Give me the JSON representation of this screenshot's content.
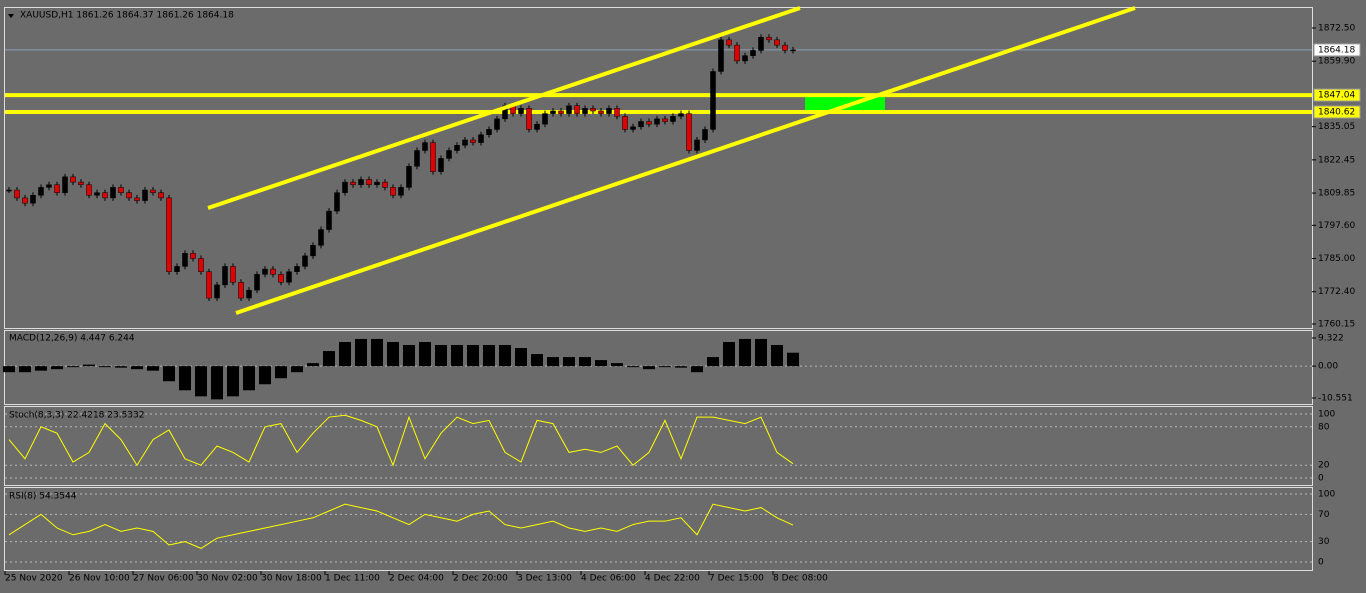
{
  "symbol_label": "XAUUSD,H1  1861.26 1864.37 1861.26 1864.18",
  "price_panel": {
    "ylim": [
      1758.63,
      1880.09
    ],
    "yticks": [
      {
        "value": 1872.5,
        "label": "1872.50"
      },
      {
        "value": 1859.9,
        "label": "1859.90"
      },
      1835.05,
      1822.45,
      1809.85,
      {
        "value": 1797.6,
        "label": "1797.60"
      },
      {
        "value": 1785,
        "label": "1785.00"
      },
      {
        "value": 1772.4,
        "label": "1772.40"
      },
      1760.15
    ],
    "current_price": 1864.18,
    "levels": [
      1847.04,
      1840.62
    ],
    "closes": [
      1811,
      1808,
      1806,
      1809,
      1812,
      1813,
      1810,
      1816,
      1814,
      1813,
      1809,
      1810,
      1808,
      1812,
      1810,
      1808,
      1807,
      1811,
      1810,
      1808,
      1780,
      1782,
      1787,
      1785,
      1780,
      1770,
      1775,
      1782,
      1776,
      1770,
      1773,
      1779,
      1781,
      1779,
      1776,
      1780,
      1782,
      1786,
      1790,
      1796,
      1803,
      1810,
      1814,
      1813,
      1815,
      1813,
      1814,
      1812,
      1809,
      1812,
      1820,
      1826,
      1829,
      1818,
      1823,
      1826,
      1828,
      1830,
      1829,
      1832,
      1834,
      1838,
      1843,
      1840,
      1842,
      1834,
      1836,
      1840,
      1841,
      1840,
      1843,
      1840,
      1842,
      1841,
      1840,
      1842,
      1839,
      1834,
      1835,
      1837,
      1836,
      1838,
      1837,
      1839,
      1840,
      1826,
      1830,
      1834,
      1856,
      1868,
      1866,
      1860,
      1862,
      1864,
      1869,
      1868,
      1866,
      1864,
      1864.18
    ]
  },
  "macd_panel": {
    "label": "MACD(12,26,9) 4.447 6.244",
    "ylim": [
      -12.54,
      11.97
    ],
    "yticks": [
      9.322,
      {
        "value": 0,
        "label": "0.00"
      },
      -10.551
    ],
    "values": [
      -2,
      -2,
      -1.5,
      -1,
      0,
      0.5,
      0,
      -0.5,
      -1,
      -1.5,
      -5,
      -8,
      -10,
      -11,
      -10,
      -8,
      -6,
      -4,
      -2,
      1,
      5,
      8,
      9,
      9,
      8,
      7,
      8,
      7,
      7,
      7,
      7,
      7,
      6,
      4,
      3,
      3,
      3,
      2,
      1,
      0,
      -1,
      0,
      -0.5,
      -2,
      3,
      8,
      9,
      9,
      7,
      4.447
    ]
  },
  "stoch_panel": {
    "label": "Stoch(8,3,3) 22.4218 23.5332",
    "ylim": [
      -10.9,
      110.9
    ],
    "yticks": [
      100,
      80,
      20,
      0
    ],
    "values": [
      60,
      30,
      80,
      70,
      25,
      40,
      85,
      60,
      20,
      60,
      75,
      30,
      20,
      50,
      40,
      25,
      80,
      85,
      40,
      70,
      95,
      98,
      90,
      80,
      20,
      95,
      30,
      70,
      95,
      85,
      90,
      40,
      25,
      90,
      85,
      40,
      45,
      40,
      50,
      20,
      40,
      90,
      30,
      95,
      95,
      90,
      85,
      95,
      40,
      22.42
    ]
  },
  "rsi_panel": {
    "label": "RSI(8) 54.3544",
    "ylim": [
      -11.8,
      108.8
    ],
    "yticks": [
      100,
      70,
      30,
      0
    ],
    "values": [
      40,
      55,
      70,
      50,
      40,
      45,
      55,
      45,
      50,
      45,
      25,
      30,
      20,
      35,
      40,
      45,
      50,
      55,
      60,
      65,
      75,
      85,
      80,
      75,
      65,
      55,
      70,
      65,
      60,
      70,
      75,
      55,
      50,
      55,
      60,
      50,
      45,
      50,
      45,
      55,
      60,
      60,
      65,
      40,
      85,
      80,
      75,
      80,
      65,
      54.35
    ]
  },
  "time_labels": [
    "25 Nov 2020",
    "26 Nov 10:00",
    "27 Nov 06:00",
    "30 Nov 02:00",
    "30 Nov 18:00",
    "1 Dec 11:00",
    "2 Dec 04:00",
    "2 Dec 20:00",
    "3 Dec 13:00",
    "4 Dec 06:00",
    "4 Dec 22:00",
    "7 Dec 15:00",
    "8 Dec 08:00"
  ]
}
